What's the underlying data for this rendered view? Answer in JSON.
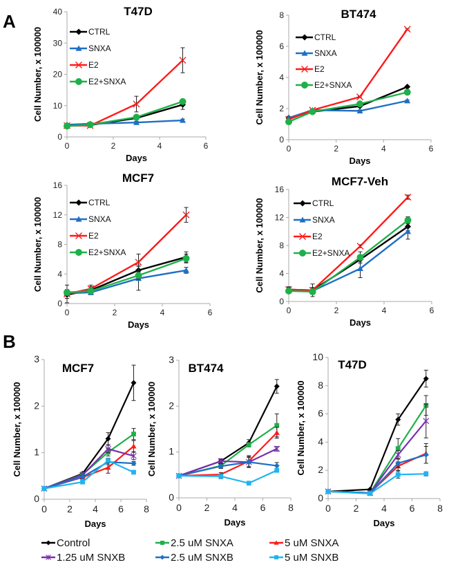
{
  "panel_labels": {
    "a": "A",
    "b": "B"
  },
  "legend_a": [
    {
      "name": "CTRL",
      "color": "#000000",
      "marker": "diamond"
    },
    {
      "name": "SNXA",
      "color": "#1f6fc5",
      "marker": "triangle"
    },
    {
      "name": "E2",
      "color": "#ff1a1a",
      "marker": "x"
    },
    {
      "name": "E2+SNXA",
      "color": "#1fb04a",
      "marker": "circle"
    }
  ],
  "legend_b": [
    {
      "name": "Control",
      "color": "#000000",
      "marker": "diamond"
    },
    {
      "name": "2.5 uM SNXA",
      "color": "#1fb04a",
      "marker": "square"
    },
    {
      "name": "5 uM SNXA",
      "color": "#ff1a1a",
      "marker": "triangle"
    },
    {
      "name": "1.25 uM SNXB",
      "color": "#7b2fae",
      "marker": "star"
    },
    {
      "name": "2.5 uM SNXB",
      "color": "#1f6fc5",
      "marker": "diamond"
    },
    {
      "name": "5 uM SNXB",
      "color": "#1fb4f0",
      "marker": "square"
    }
  ],
  "chart_data": [
    {
      "type": "line",
      "title": "T47D",
      "xlabel": "Days",
      "ylabel": "Cell Number, x 100000",
      "xlim": [
        0,
        6
      ],
      "xticks": [
        0,
        2,
        4,
        6
      ],
      "ylim": [
        0,
        40
      ],
      "yticks": [
        0,
        10,
        20,
        30,
        40
      ],
      "legend": "top-left",
      "grid": false,
      "x": [
        0,
        1,
        3,
        5
      ],
      "series": [
        {
          "name": "CTRL",
          "values": [
            3.5,
            3.8,
            6.0,
            10.3
          ],
          "err": [
            0.5,
            0.5,
            0.6,
            1.5
          ]
        },
        {
          "name": "SNXA",
          "values": [
            3.9,
            4.2,
            4.6,
            5.3
          ],
          "err": [
            0.3,
            0.3,
            0.4,
            0.4
          ]
        },
        {
          "name": "E2",
          "values": [
            3.6,
            3.6,
            10.5,
            24.5
          ],
          "err": [
            0.4,
            0.4,
            2.5,
            4.0
          ]
        },
        {
          "name": "E2+SNXA",
          "values": [
            3.5,
            3.9,
            6.3,
            11.3
          ],
          "err": [
            0.4,
            0.4,
            0.5,
            0.6
          ]
        }
      ]
    },
    {
      "type": "line",
      "title": "BT474",
      "xlabel": "Days",
      "ylabel": "Cell Number, x 100000",
      "xlim": [
        0,
        6
      ],
      "xticks": [
        0,
        2,
        4,
        6
      ],
      "ylim": [
        0,
        8
      ],
      "yticks": [
        0,
        2,
        4,
        6,
        8
      ],
      "legend": "top-left",
      "grid": false,
      "x": [
        0,
        1,
        3,
        5
      ],
      "series": [
        {
          "name": "CTRL",
          "values": [
            1.4,
            1.8,
            2.15,
            3.4
          ],
          "err": [
            0.05,
            0.05,
            0.05,
            0.05
          ]
        },
        {
          "name": "SNXA",
          "values": [
            1.4,
            1.9,
            1.85,
            2.5
          ],
          "err": [
            0.05,
            0.05,
            0.05,
            0.05
          ]
        },
        {
          "name": "E2",
          "values": [
            1.3,
            1.9,
            2.75,
            7.1
          ],
          "err": [
            0.05,
            0.05,
            0.05,
            0.05
          ]
        },
        {
          "name": "E2+SNXA",
          "values": [
            1.15,
            1.8,
            2.3,
            3.05
          ],
          "err": [
            0.05,
            0.05,
            0.05,
            0.05
          ]
        }
      ]
    },
    {
      "type": "line",
      "title": "MCF7",
      "xlabel": "Days",
      "ylabel": "Cell Number, x 100000",
      "xlim": [
        0,
        6
      ],
      "xticks": [
        0,
        2,
        4,
        6
      ],
      "ylim": [
        0,
        16
      ],
      "yticks": [
        0,
        4,
        8,
        12,
        16
      ],
      "legend": "top-left",
      "grid": false,
      "x": [
        0,
        1,
        3,
        5
      ],
      "series": [
        {
          "name": "CTRL",
          "values": [
            1.2,
            1.8,
            4.5,
            6.3
          ],
          "err": [
            0.5,
            0.5,
            0.7,
            0.7
          ]
        },
        {
          "name": "SNXA",
          "values": [
            1.4,
            1.5,
            3.4,
            4.5
          ],
          "err": [
            0.3,
            0.3,
            1.6,
            0.4
          ]
        },
        {
          "name": "E2",
          "values": [
            1.3,
            2.0,
            5.6,
            12.0
          ],
          "err": [
            1.2,
            0.5,
            1.1,
            1.0
          ]
        },
        {
          "name": "E2+SNXA",
          "values": [
            1.5,
            1.7,
            3.8,
            6.1
          ],
          "err": [
            0.4,
            0.4,
            0.5,
            0.6
          ]
        }
      ]
    },
    {
      "type": "line",
      "title": "MCF7-Veh",
      "xlabel": "Days",
      "ylabel": "Cell Number, x 100000",
      "xlim": [
        0,
        6
      ],
      "xticks": [
        0,
        2,
        4,
        6
      ],
      "ylim": [
        0,
        16
      ],
      "yticks": [
        0,
        4,
        8,
        12,
        16
      ],
      "legend": "top-left",
      "grid": false,
      "x": [
        0,
        1,
        3,
        5
      ],
      "series": [
        {
          "name": "CTRL",
          "values": [
            1.7,
            1.6,
            6.0,
            10.7
          ],
          "err": [
            0.4,
            0.9,
            0.5,
            0.6
          ]
        },
        {
          "name": "SNXA",
          "values": [
            1.7,
            1.5,
            4.7,
            10.0
          ],
          "err": [
            0.3,
            0.5,
            1.3,
            1.1
          ]
        },
        {
          "name": "E2",
          "values": [
            1.7,
            1.6,
            7.9,
            14.9
          ],
          "err": [
            0.2,
            0.2,
            0.2,
            0.3
          ]
        },
        {
          "name": "E2+SNXA",
          "values": [
            1.5,
            1.4,
            6.3,
            11.6
          ],
          "err": [
            0.3,
            0.4,
            0.8,
            0.5
          ]
        }
      ]
    },
    {
      "type": "line",
      "title": "MCF7",
      "xlabel": "Days",
      "ylabel": "Cell Number, x 100000",
      "xlim": [
        0,
        8
      ],
      "xticks": [
        0,
        2,
        4,
        6,
        8
      ],
      "ylim": [
        0,
        3
      ],
      "yticks": [
        0,
        1,
        2,
        3
      ],
      "legend": "bottom",
      "grid": false,
      "x": [
        0,
        3,
        5,
        7
      ],
      "series": [
        {
          "name": "Control",
          "values": [
            0.23,
            0.55,
            1.3,
            2.5
          ],
          "err": [
            0.02,
            0.03,
            0.13,
            0.38
          ]
        },
        {
          "name": "2.5 uM SNXA",
          "values": [
            0.23,
            0.53,
            1.01,
            1.4
          ],
          "err": [
            0.02,
            0.03,
            0.08,
            0.12
          ]
        },
        {
          "name": "5 uM SNXA",
          "values": [
            0.23,
            0.47,
            0.68,
            1.14
          ],
          "err": [
            0.02,
            0.03,
            0.12,
            0.12
          ]
        },
        {
          "name": "1.25 uM SNXB",
          "values": [
            0.23,
            0.52,
            1.08,
            0.93
          ],
          "err": [
            0.02,
            0.03,
            0.08,
            0.08
          ]
        },
        {
          "name": "2.5 uM SNXB",
          "values": [
            0.23,
            0.48,
            0.8,
            0.77
          ],
          "err": [
            0.02,
            0.03,
            0.06,
            0.04
          ]
        },
        {
          "name": "5 uM SNXB",
          "values": [
            0.23,
            0.37,
            0.83,
            0.58
          ],
          "err": [
            0.02,
            0.03,
            0.05,
            0.03
          ]
        }
      ]
    },
    {
      "type": "line",
      "title": "BT474",
      "xlabel": "Days",
      "ylabel": "Cell Number, x 100000",
      "xlim": [
        0,
        8
      ],
      "xticks": [
        0,
        2,
        4,
        6,
        8
      ],
      "ylim": [
        0,
        3
      ],
      "yticks": [
        0,
        1,
        2,
        3
      ],
      "legend": "bottom",
      "grid": false,
      "x": [
        0,
        3,
        5,
        7
      ],
      "series": [
        {
          "name": "Control",
          "values": [
            0.48,
            0.8,
            1.2,
            2.43
          ],
          "err": [
            0.02,
            0.05,
            0.07,
            0.15
          ]
        },
        {
          "name": "2.5 uM SNXA",
          "values": [
            0.48,
            0.7,
            1.16,
            1.58
          ],
          "err": [
            0.02,
            0.05,
            0.05,
            0.25
          ]
        },
        {
          "name": "5 uM SNXA",
          "values": [
            0.48,
            0.51,
            0.8,
            1.42
          ],
          "err": [
            0.02,
            0.04,
            0.12,
            0.12
          ]
        },
        {
          "name": "1.25 uM SNXB",
          "values": [
            0.48,
            0.8,
            0.78,
            1.07
          ],
          "err": [
            0.02,
            0.05,
            0.1,
            0.05
          ]
        },
        {
          "name": "2.5 uM SNXB",
          "values": [
            0.48,
            0.69,
            0.78,
            0.7
          ],
          "err": [
            0.02,
            0.05,
            0.12,
            0.07
          ]
        },
        {
          "name": "5 uM SNXB",
          "values": [
            0.48,
            0.47,
            0.32,
            0.6
          ],
          "err": [
            0.02,
            0.05,
            0.04,
            0.04
          ]
        }
      ]
    },
    {
      "type": "line",
      "title": "T47D",
      "xlabel": "Days",
      "ylabel": "Cell Number, x 100000",
      "xlim": [
        0,
        8
      ],
      "xticks": [
        0,
        2,
        4,
        6,
        8
      ],
      "ylim": [
        0,
        10
      ],
      "yticks": [
        0,
        2,
        4,
        6,
        8,
        10
      ],
      "legend": "bottom",
      "grid": false,
      "x": [
        0,
        3,
        5,
        7
      ],
      "series": [
        {
          "name": "Control",
          "values": [
            0.5,
            0.65,
            5.6,
            8.5
          ],
          "err": [
            0.03,
            0.05,
            0.4,
            0.6
          ]
        },
        {
          "name": "2.5 uM SNXA",
          "values": [
            0.5,
            0.4,
            3.55,
            6.6
          ],
          "err": [
            0.03,
            0.05,
            0.7,
            0.7
          ]
        },
        {
          "name": "5 uM SNXA",
          "values": [
            0.5,
            0.4,
            2.3,
            3.2
          ],
          "err": [
            0.03,
            0.05,
            0.3,
            0.7
          ]
        },
        {
          "name": "1.25 uM SNXB",
          "values": [
            0.5,
            0.4,
            3.1,
            5.5
          ],
          "err": [
            0.03,
            0.05,
            0.3,
            1.2
          ]
        },
        {
          "name": "2.5 uM SNXB",
          "values": [
            0.5,
            0.4,
            2.5,
            3.1
          ],
          "err": [
            0.03,
            0.05,
            0.3,
            0.6
          ]
        },
        {
          "name": "5 uM SNXB",
          "values": [
            0.5,
            0.35,
            1.7,
            1.75
          ],
          "err": [
            0.03,
            0.05,
            0.25,
            0.15
          ]
        }
      ]
    }
  ]
}
